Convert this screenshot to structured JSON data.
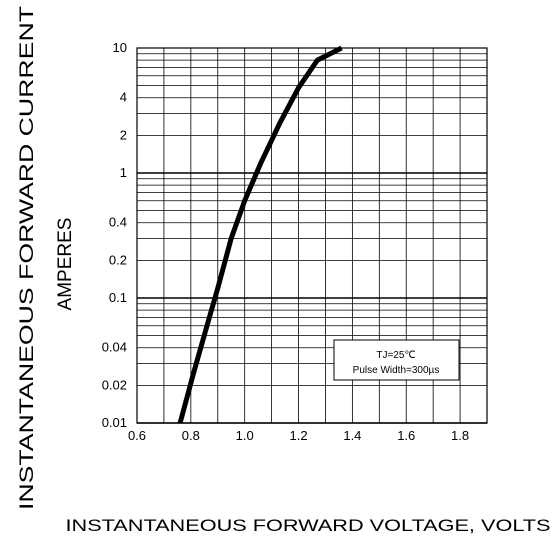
{
  "chart_data": {
    "type": "line",
    "title": "",
    "xlabel": "INSTANTANEOUS FORWARD VOLTAGE,  VOLTS",
    "ylabel_line1": "INSTANTANEOUS FORWARD CURRENT",
    "ylabel_line2": "AMPERES",
    "x_scale": "linear",
    "y_scale": "log",
    "xlim": [
      0.6,
      1.9
    ],
    "ylim": [
      0.01,
      10
    ],
    "grid": true,
    "x_ticks": [
      {
        "value": 0.6,
        "label": "0.6"
      },
      {
        "value": 0.8,
        "label": "0.8"
      },
      {
        "value": 1.0,
        "label": "1.0"
      },
      {
        "value": 1.2,
        "label": "1.2"
      },
      {
        "value": 1.4,
        "label": "1.4"
      },
      {
        "value": 1.6,
        "label": "1.6"
      },
      {
        "value": 1.8,
        "label": "1.8"
      }
    ],
    "y_ticks": [
      {
        "value": 10,
        "label": "10"
      },
      {
        "value": 4,
        "label": "4"
      },
      {
        "value": 2,
        "label": "2"
      },
      {
        "value": 1,
        "label": "1"
      },
      {
        "value": 0.4,
        "label": "0.4"
      },
      {
        "value": 0.2,
        "label": "0.2"
      },
      {
        "value": 0.1,
        "label": "0.1"
      },
      {
        "value": 0.04,
        "label": "0.04"
      },
      {
        "value": 0.02,
        "label": "0.02"
      },
      {
        "value": 0.01,
        "label": "0.01"
      }
    ],
    "annotation_line1": "TJ=25℃",
    "annotation_line2": "Pulse Width=300µs",
    "series": [
      {
        "x": [
          0.76,
          0.81,
          0.86,
          0.9,
          0.95,
          1.0,
          1.06,
          1.13,
          1.2,
          1.27,
          1.36
        ],
        "y": [
          0.01,
          0.025,
          0.06,
          0.12,
          0.3,
          0.6,
          1.2,
          2.5,
          4.8,
          8.0,
          10.0
        ],
        "color": "#000000"
      }
    ]
  }
}
